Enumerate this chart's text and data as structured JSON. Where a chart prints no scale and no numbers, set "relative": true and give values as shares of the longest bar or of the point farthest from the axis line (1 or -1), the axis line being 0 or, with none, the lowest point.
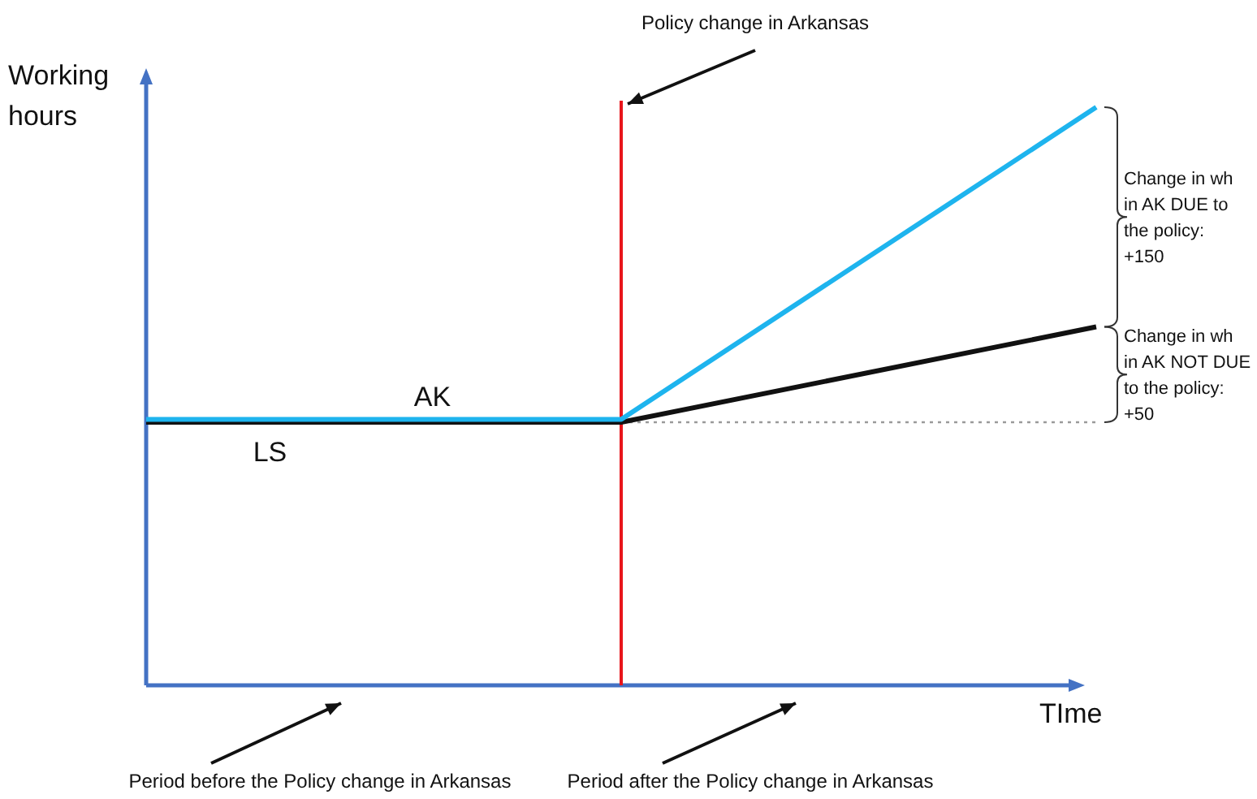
{
  "chart_data": {
    "type": "line",
    "relative": true,
    "xlabel": "TIme",
    "ylabel": "Working hours",
    "categories": [
      null,
      null,
      null
    ],
    "series": [
      {
        "name": "AK",
        "color": "#1eb4ee",
        "values": [
          0.46,
          0.46,
          1
        ]
      },
      {
        "name": "LS",
        "color": "#111111",
        "values": [
          0.455,
          0.455,
          0.62
        ]
      },
      {
        "color": "#9a9a9a",
        "values": [
          null,
          0.455,
          0.455
        ],
        "line_style": "dotted"
      }
    ],
    "ref_lines": [
      {
        "axis": "x",
        "value": null,
        "label": "Policy change in Arkansas",
        "color": "#e8151b"
      }
    ],
    "annotations": [
      "Change in wh in AK DUE to the policy: +150",
      "Change in wh in AK NOT DUE to the policy: +50",
      "Period before the Policy change in Arkansas",
      "Period after the Policy change in Arkansas"
    ]
  }
}
